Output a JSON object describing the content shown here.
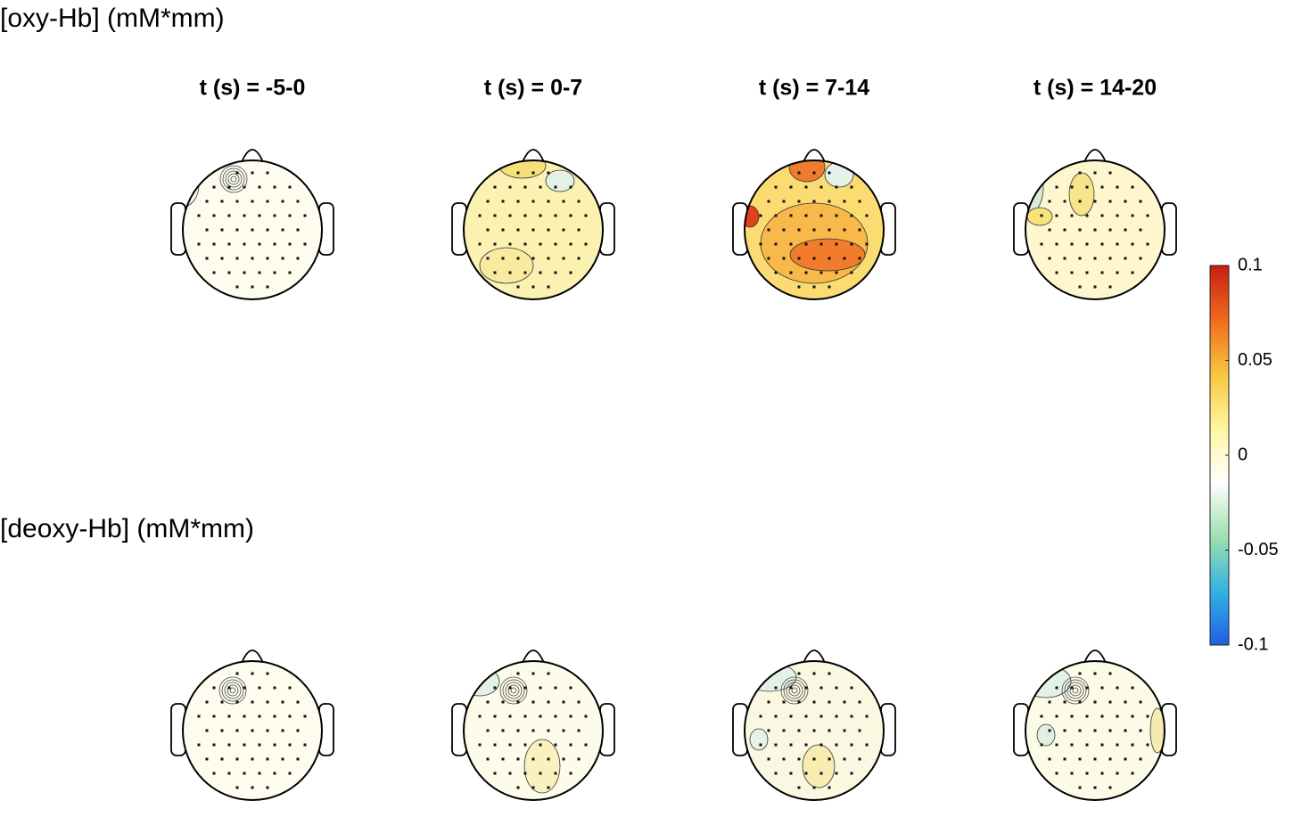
{
  "rows": [
    {
      "label": "[oxy-Hb] (mM*mm)"
    },
    {
      "label": "[deoxy-Hb] (mM*mm)"
    }
  ],
  "columns": [
    "t (s) = -5-0",
    "t (s) = 0-7",
    "t (s) = 7-14",
    "t (s) = 14-20"
  ],
  "colorbar": {
    "lim": [
      -0.1,
      0.1
    ],
    "ticks": [
      0.1,
      0.05,
      0,
      -0.05,
      -0.1
    ],
    "colormap": [
      "#1f5fe6",
      "#33b3e0",
      "#9fe0b0",
      "#ffffff",
      "#fff6a0",
      "#f7c640",
      "#f06a1e",
      "#c81e10"
    ]
  }
}
